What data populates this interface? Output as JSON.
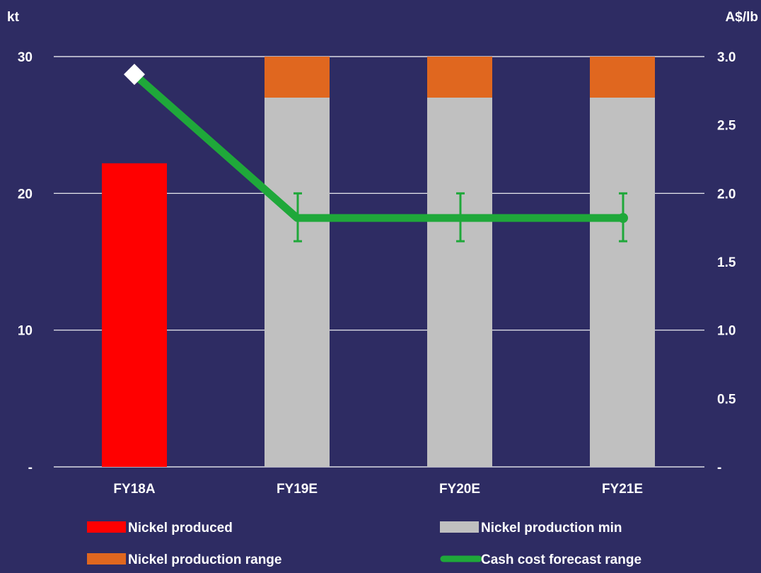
{
  "chart_data": {
    "type": "bar",
    "title": "",
    "categories": [
      "FY18A",
      "FY19E",
      "FY20E",
      "FY21E"
    ],
    "left_axis": {
      "unit_label": "kt",
      "ylim": [
        0,
        30
      ],
      "ticks": [
        0,
        10,
        20,
        30
      ],
      "tick_labels": [
        "-",
        "10",
        "20",
        "30"
      ]
    },
    "right_axis": {
      "unit_label": "A$/lb",
      "ylim": [
        0,
        3.0
      ],
      "ticks": [
        0,
        0.5,
        1.0,
        1.5,
        2.0,
        2.5,
        3.0
      ],
      "tick_labels": [
        "-",
        "0.5",
        "1.0",
        "1.5",
        "2.0",
        "2.5",
        "3.0"
      ]
    },
    "grid": true,
    "series": [
      {
        "name": "Nickel produced",
        "kind": "bar",
        "axis": "left",
        "color": "#ff0000",
        "values": [
          22.2,
          null,
          null,
          null
        ]
      },
      {
        "name": "Nickel production min",
        "kind": "stacked_bar",
        "axis": "left",
        "color": "#c0c0c0",
        "values": [
          null,
          27,
          27,
          27
        ]
      },
      {
        "name": "Nickel production range",
        "kind": "stacked_bar",
        "axis": "left",
        "color": "#e0671f",
        "values": [
          null,
          3,
          3,
          3
        ]
      },
      {
        "name": "Cash cost forecast range",
        "kind": "line",
        "axis": "right",
        "color": "#1fa83a",
        "values": [
          2.87,
          1.82,
          1.82,
          1.82
        ],
        "range_low": [
          null,
          1.65,
          1.65,
          1.65
        ],
        "range_high": [
          null,
          2.0,
          2.0,
          2.0
        ]
      }
    ],
    "legend": {
      "placement": "bottom",
      "items": [
        {
          "label": "Nickel produced",
          "color": "#ff0000",
          "shape": "box"
        },
        {
          "label": "Nickel production min",
          "color": "#c0c0c0",
          "shape": "box"
        },
        {
          "label": "Nickel production range",
          "color": "#e0671f",
          "shape": "box"
        },
        {
          "label": "Cash cost forecast range",
          "color": "#1fa83a",
          "shape": "line"
        }
      ]
    }
  }
}
